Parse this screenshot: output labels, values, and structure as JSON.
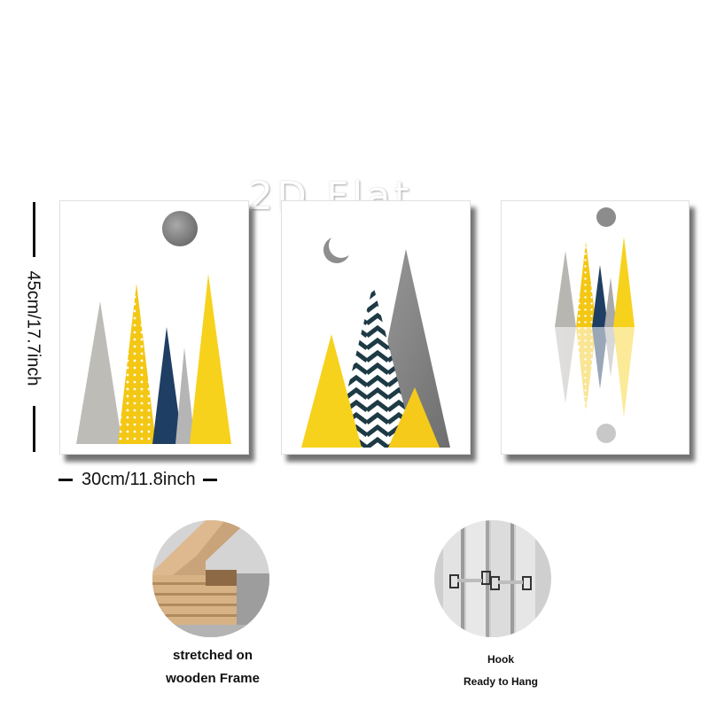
{
  "watermark": "2D Flat",
  "dimensions": {
    "height_label": "45cm/17.7inch",
    "width_label": "30cm/11.8inch"
  },
  "panels": [
    {
      "name": "yellow-gray-mountains-with-moon"
    },
    {
      "name": "chevron-mountain-with-crescent-moon"
    },
    {
      "name": "reflected-mountains-with-moons"
    }
  ],
  "features": {
    "frame": {
      "line1": "stretched on",
      "line2": "wooden Frame"
    },
    "hook": {
      "line1": "Hook",
      "line2": "Ready to Hang"
    }
  },
  "colors": {
    "yellow": "#f5d20f",
    "gray": "#a8a8a8",
    "navy": "#1f3e63",
    "dark_teal": "#1d3a45"
  }
}
